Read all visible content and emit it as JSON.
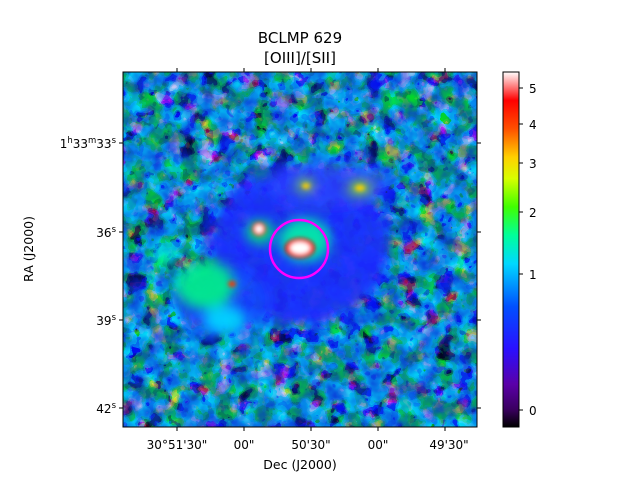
{
  "title": {
    "line1": "BCLMP 629",
    "line2": "[OIII]/[SII]"
  },
  "axes": {
    "xlabel": "Dec (J2000)",
    "ylabel": "RA (J2000)",
    "x_ticks": [
      {
        "deg": "30°51'30\"",
        "min": "",
        "sec": ""
      },
      {
        "deg": "",
        "min": "",
        "sec": "00\""
      },
      {
        "deg": "",
        "min": "50'30\"",
        "sec": ""
      },
      {
        "deg": "",
        "min": "",
        "sec": "00\""
      },
      {
        "deg": "",
        "min": "49'30\"",
        "sec": ""
      }
    ],
    "x_tick_labels": [
      "30°51'30\"",
      "00\"",
      "50'30\"",
      "00\"",
      "49'30\""
    ],
    "y_tick_labels": [
      {
        "base": "1",
        "parts": [
          {
            "t": "1",
            "sup": "h"
          },
          {
            "t": "33",
            "sup": "m"
          },
          {
            "t": "33",
            "sup": "s"
          }
        ]
      },
      {
        "base": "36",
        "parts": [
          {
            "t": "36",
            "sup": "s"
          }
        ]
      },
      {
        "base": "39",
        "parts": [
          {
            "t": "39",
            "sup": "s"
          }
        ]
      },
      {
        "base": "42",
        "parts": [
          {
            "t": "42",
            "sup": "s"
          }
        ]
      }
    ]
  },
  "colorbar": {
    "colormap": "gist_rainbow-like (black → purple → blue → cyan → green → yellow → red → white)",
    "scale": "nonlinear (asinh/sqrt-like)",
    "tick_labels": [
      "0",
      "1",
      "2",
      "3",
      "4",
      "5"
    ],
    "range": [
      -0.2,
      5.3
    ],
    "colors": [
      "#000000",
      "#5a00a8",
      "#1d1dff",
      "#0070ff",
      "#00e5ff",
      "#00ff6a",
      "#9cff00",
      "#ffff00",
      "#ff9a00",
      "#ff0000",
      "#ffffff"
    ]
  },
  "aperture": {
    "shape": "circle",
    "color": "#ff00ff"
  },
  "image": {
    "description_colors": {
      "background_noise": "#000000",
      "diffuse": "#1a39ff",
      "bright_core": "#ffffff"
    }
  }
}
